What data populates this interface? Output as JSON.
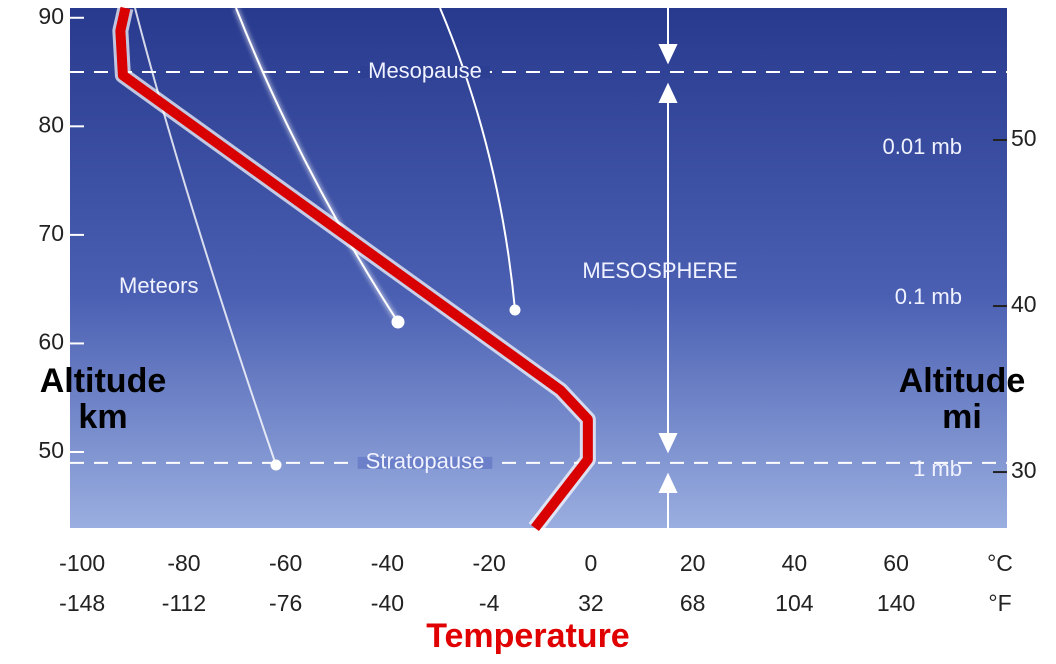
{
  "chart_data": {
    "type": "line",
    "x": [
      -11,
      -0.6,
      -0.6,
      -6,
      -92,
      -92.5,
      -91.5
    ],
    "series": [
      {
        "color": "#d80000",
        "values": [
          43,
          49.3,
          53,
          55.7,
          84.7,
          88.8,
          90.9
        ]
      }
    ],
    "xlim": [
      -102.4,
      81.8
    ],
    "xticks": [
      -100,
      -80,
      -60,
      -40,
      -20,
      0,
      20,
      40,
      60
    ],
    "x_unit": "°C",
    "xticks_f": [
      {
        "value": -100,
        "label": "-148"
      },
      {
        "value": -80,
        "label": "-112"
      },
      {
        "value": -60,
        "label": "-76"
      },
      {
        "value": -40,
        "label": "-40"
      },
      {
        "value": -20,
        "label": "-4"
      },
      {
        "value": 0,
        "label": "32"
      },
      {
        "value": 20,
        "label": "68"
      },
      {
        "value": 40,
        "label": "104"
      },
      {
        "value": 60,
        "label": "140"
      }
    ],
    "x_unit_f": "°F",
    "ylim": [
      43,
      90.9
    ],
    "yticks": [
      50,
      60,
      70,
      80,
      90
    ],
    "y2lim": [
      26.63,
      57.95
    ],
    "y2ticks": [
      30,
      40,
      50
    ],
    "boundaries": [
      {
        "label": "Mesopause",
        "value": 85
      },
      {
        "label": "Stratopause",
        "value": 49
      }
    ],
    "pressure_labels": [
      "0.01 mb",
      "0.1 mb",
      "1 mb"
    ],
    "layer_label": "MESOSPHERE",
    "meteor_label": "Meteors",
    "ylabel": "Altitude km",
    "y2label": "Altitude mi",
    "xlabel": "Temperature"
  }
}
